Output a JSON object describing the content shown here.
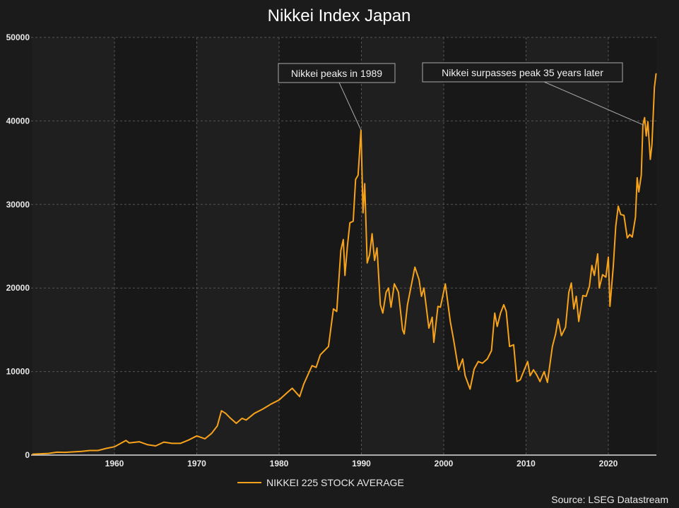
{
  "chart_data": {
    "type": "line",
    "title": "Nikkei Index Japan",
    "xlabel": "",
    "ylabel": "",
    "xlim": [
      1950,
      2025.85
    ],
    "ylim": [
      0,
      50000
    ],
    "x_ticks": [
      "1960",
      "1970",
      "1980",
      "1990",
      "2000",
      "2010",
      "2020"
    ],
    "x_tick_values": [
      1960,
      1970,
      1980,
      1990,
      2000,
      2010,
      2020
    ],
    "y_ticks": [
      "0",
      "10000",
      "20000",
      "30000",
      "40000",
      "50000"
    ],
    "y_tick_values": [
      0,
      10000,
      20000,
      30000,
      40000,
      50000
    ],
    "grid": true,
    "legend_placement": "bottom-center",
    "colors": {
      "series": "#f7a21b",
      "background": "#1b1b1b",
      "band_light": "#1f1f1f",
      "band_dark": "#181818"
    },
    "series": [
      {
        "name": "NIKKEI 225 STOCK AVERAGE",
        "x": [
          1950.0,
          1952,
          1953,
          1954,
          1956,
          1957,
          1958,
          1959,
          1960,
          1961.4,
          1961.8,
          1963,
          1964,
          1965,
          1966,
          1967,
          1968,
          1969,
          1970,
          1971,
          1971.8,
          1972.5,
          1973.0,
          1973.5,
          1974,
          1974.8,
          1975.5,
          1976,
          1977,
          1978,
          1979,
          1980,
          1981,
          1981.6,
          1982.5,
          1983,
          1984,
          1984.5,
          1985,
          1986,
          1986.6,
          1987,
          1987.5,
          1987.8,
          1988,
          1988.3,
          1988.6,
          1989,
          1989.3,
          1989.6,
          1989.95,
          1990.2,
          1990.4,
          1990.7,
          1991,
          1991.3,
          1991.6,
          1991.9,
          1992.3,
          1992.6,
          1993,
          1993.3,
          1993.6,
          1994,
          1994.5,
          1995,
          1995.2,
          1995.6,
          1996.5,
          1997,
          1997.3,
          1997.6,
          1998.2,
          1998.6,
          1998.8,
          1999.3,
          1999.6,
          2000.2,
          2000.8,
          2001.2,
          2001.8,
          2002.3,
          2002.6,
          2003.2,
          2003.7,
          2004.2,
          2004.7,
          2005.3,
          2005.8,
          2006.2,
          2006.5,
          2006.9,
          2007.3,
          2007.6,
          2008,
          2008.5,
          2008.9,
          2009.3,
          2009.7,
          2010.2,
          2010.5,
          2010.9,
          2011.3,
          2011.7,
          2012.2,
          2012.6,
          2013.2,
          2013.6,
          2013.9,
          2014.3,
          2014.8,
          2015.2,
          2015.5,
          2015.8,
          2016.1,
          2016.4,
          2016.9,
          2017.3,
          2017.7,
          2018.0,
          2018.3,
          2018.7,
          2018.9,
          2019.3,
          2019.7,
          2020.0,
          2020.2,
          2020.6,
          2020.9,
          2021.2,
          2021.5,
          2021.9,
          2022.3,
          2022.6,
          2022.9,
          2023.3,
          2023.5,
          2023.7,
          2024.0,
          2024.2,
          2024.4,
          2024.6,
          2024.8,
          2025.1,
          2025.3,
          2025.6,
          2025.8
        ],
        "values": [
          100,
          200,
          350,
          330,
          450,
          550,
          550,
          800,
          1000,
          1750,
          1450,
          1600,
          1250,
          1100,
          1550,
          1400,
          1400,
          1800,
          2300,
          1950,
          2600,
          3500,
          5300,
          5000,
          4500,
          3800,
          4400,
          4200,
          5000,
          5500,
          6100,
          6600,
          7500,
          8000,
          7000,
          8500,
          10700,
          10500,
          12000,
          13000,
          17500,
          17200,
          24500,
          25800,
          21500,
          25000,
          27800,
          28000,
          33000,
          33500,
          38900,
          29000,
          32500,
          23000,
          24000,
          26500,
          23300,
          24800,
          18000,
          17000,
          19500,
          20000,
          17700,
          20500,
          19500,
          15000,
          14500,
          18000,
          22500,
          21000,
          19000,
          20000,
          15200,
          16500,
          13500,
          17800,
          17700,
          20500,
          16000,
          13800,
          10200,
          11500,
          9500,
          7900,
          10300,
          11200,
          11000,
          11500,
          12500,
          17000,
          15400,
          17000,
          18000,
          17200,
          13000,
          13200,
          8800,
          9000,
          10000,
          11200,
          9500,
          10200,
          9600,
          8800,
          10000,
          8700,
          13000,
          14500,
          16300,
          14300,
          15300,
          19500,
          20600,
          17500,
          19000,
          16000,
          19100,
          19000,
          20200,
          22700,
          21500,
          24100,
          20000,
          21600,
          21300,
          23700,
          17800,
          22600,
          27400,
          29800,
          28800,
          28700,
          26000,
          26400,
          26100,
          28500,
          33200,
          31500,
          33500,
          39500,
          40400,
          38200,
          39900,
          35400,
          37200,
          44000,
          45700
        ]
      }
    ],
    "annotations": [
      {
        "text": "Nikkei peaks in 1989",
        "x": 1989.95,
        "y": 38900
      },
      {
        "text": "Nikkei surpasses peak 35 years later",
        "x": 2024.3,
        "y": 39500
      }
    ],
    "source": "Source: LSEG Datastream"
  }
}
